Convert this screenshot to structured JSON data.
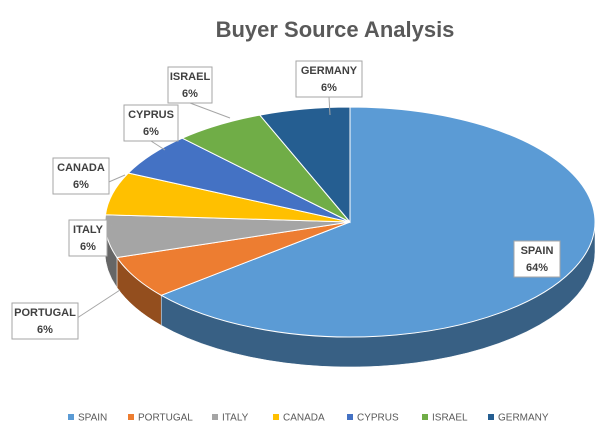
{
  "chart_data": {
    "type": "pie",
    "title": "Buyer Source Analysis",
    "categories": [
      "SPAIN",
      "PORTUGAL",
      "ITALY",
      "CANADA",
      "CYPRUS",
      "ISRAEL",
      "GERMANY"
    ],
    "values": [
      64,
      6,
      6,
      6,
      6,
      6,
      6
    ],
    "value_labels": [
      "64%",
      "6%",
      "6%",
      "6%",
      "6%",
      "6%",
      "6%"
    ],
    "colors": [
      "#5b9bd5",
      "#ed7d31",
      "#a5a5a5",
      "#ffc000",
      "#4472c4",
      "#70ad47",
      "#255e91"
    ],
    "legend": "bottom"
  }
}
